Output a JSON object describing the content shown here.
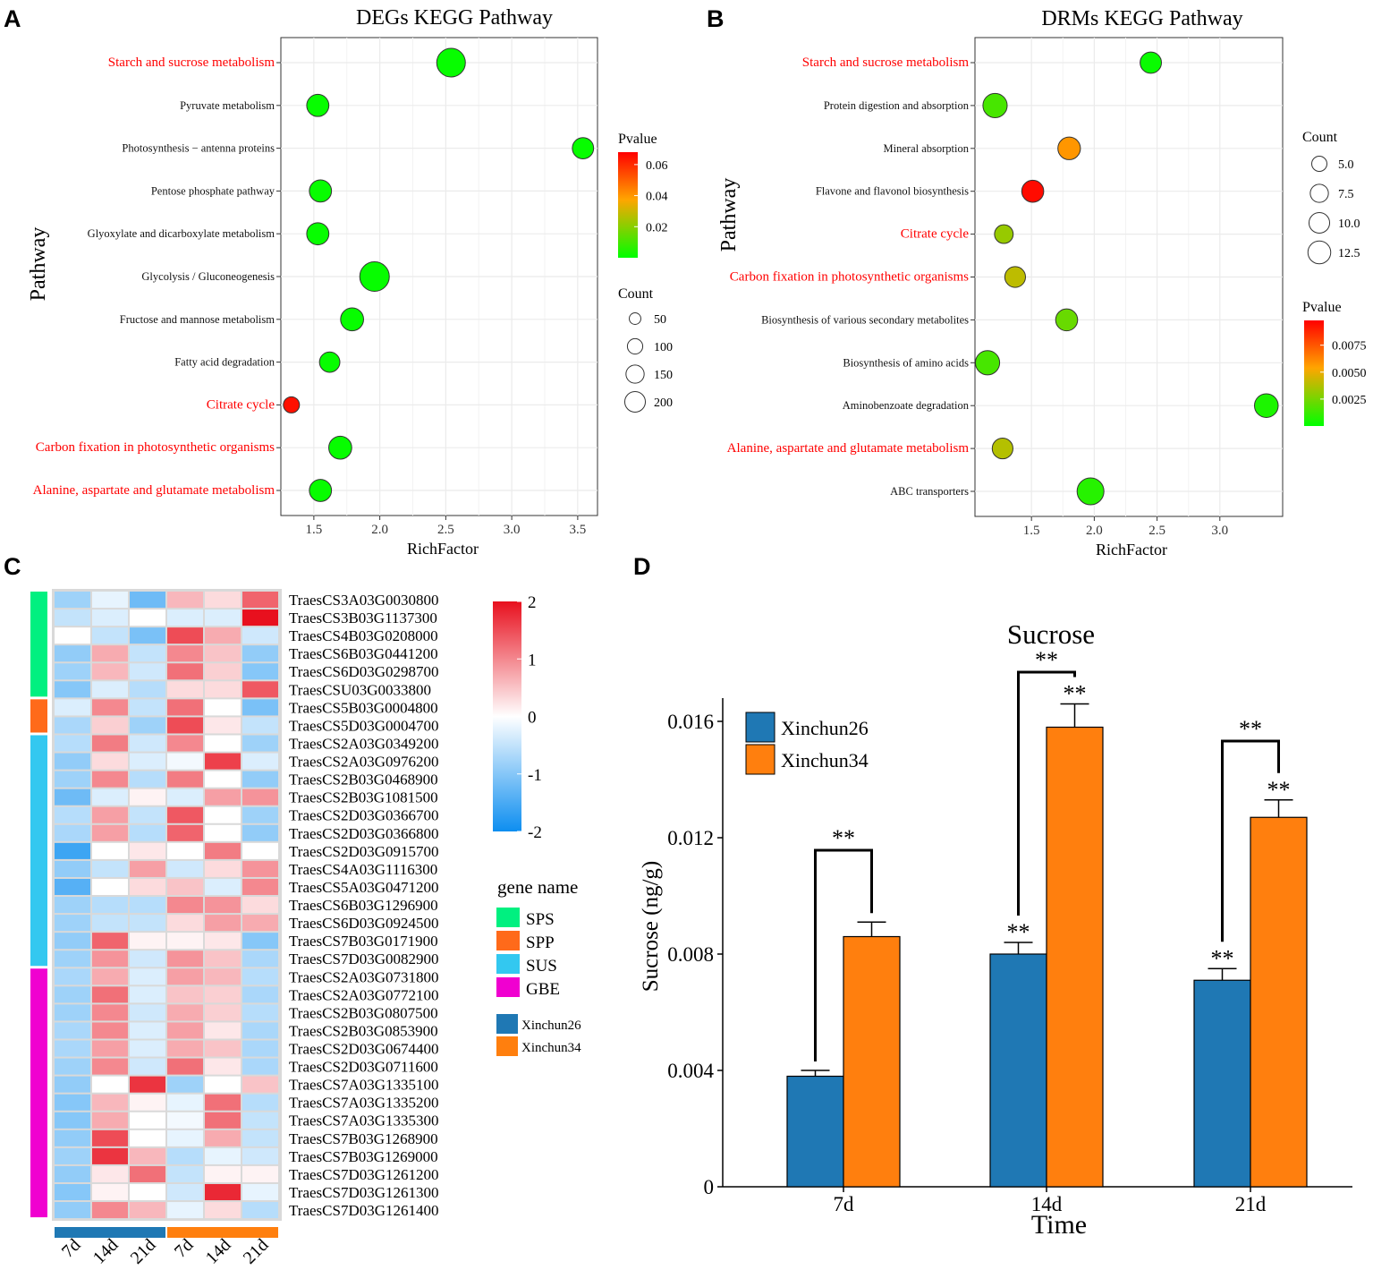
{
  "panels": {
    "A": "A",
    "B": "B",
    "C": "C",
    "D": "D"
  },
  "colors": {
    "red_label": "#ff0000",
    "grid": "#ebebeb",
    "grad_low": "#00ff00",
    "grad_mid": "#ffa500",
    "grad_high": "#ff0000"
  },
  "chart_data": [
    {
      "id": "A",
      "type": "scatter",
      "title": "DEGs KEGG Pathway",
      "xlabel": "RichFactor",
      "ylabel": "Pathway",
      "xlim": [
        1.25,
        3.65
      ],
      "xticks": [
        1.5,
        2.0,
        2.5,
        3.0,
        3.5
      ],
      "xtick_labels": [
        "1.5",
        "2.0",
        "2.5",
        "3.0",
        "3.5"
      ],
      "pathways": [
        {
          "name": "Starch and sucrose metabolism",
          "rich": 2.54,
          "count": 200,
          "pvalue": 0.001,
          "highlight": true
        },
        {
          "name": "Pyruvate metabolism",
          "rich": 1.53,
          "count": 110,
          "pvalue": 0.001,
          "highlight": false
        },
        {
          "name": "Photosynthesis − antenna proteins",
          "rich": 3.54,
          "count": 100,
          "pvalue": 0.001,
          "highlight": false
        },
        {
          "name": "Pentose phosphate pathway",
          "rich": 1.55,
          "count": 110,
          "pvalue": 0.001,
          "highlight": false
        },
        {
          "name": "Glyoxylate and dicarboxylate metabolism",
          "rich": 1.53,
          "count": 110,
          "pvalue": 0.001,
          "highlight": false
        },
        {
          "name": "Glycolysis / Gluconeogenesis",
          "rich": 1.96,
          "count": 215,
          "pvalue": 0.001,
          "highlight": false
        },
        {
          "name": "Fructose and mannose metabolism",
          "rich": 1.79,
          "count": 120,
          "pvalue": 0.001,
          "highlight": false
        },
        {
          "name": "Fatty acid degradation",
          "rich": 1.62,
          "count": 90,
          "pvalue": 0.001,
          "highlight": false
        },
        {
          "name": "Citrate cycle",
          "rich": 1.33,
          "count": 50,
          "pvalue": 0.065,
          "highlight": true
        },
        {
          "name": "Carbon fixation in photosynthetic organisms",
          "rich": 1.7,
          "count": 120,
          "pvalue": 0.001,
          "highlight": true
        },
        {
          "name": "Alanine, aspartate and glutamate metabolism",
          "rich": 1.55,
          "count": 110,
          "pvalue": 0.001,
          "highlight": true
        }
      ],
      "pvalue_legend": {
        "title": "Pvalue",
        "range": [
          0.0,
          0.068
        ],
        "ticks": [
          0.06,
          0.04,
          0.02
        ],
        "tick_labels": [
          "0.06",
          "0.04",
          "0.02"
        ]
      },
      "count_legend": {
        "title": "Count",
        "values": [
          50,
          100,
          150,
          200
        ],
        "labels": [
          "50",
          "100",
          "150",
          "200"
        ]
      }
    },
    {
      "id": "B",
      "type": "scatter",
      "title": "DRMs KEGG Pathway",
      "xlabel": "RichFactor",
      "ylabel": "Pathway",
      "xlim": [
        1.05,
        3.5
      ],
      "xticks": [
        1.5,
        2.0,
        2.5,
        3.0
      ],
      "xtick_labels": [
        "1.5",
        "2.0",
        "2.5",
        "3.0"
      ],
      "pathways": [
        {
          "name": "Starch and sucrose metabolism",
          "rich": 2.45,
          "count": 7.5,
          "pvalue": 0.0002,
          "highlight": true
        },
        {
          "name": "Protein digestion and absorption",
          "rich": 1.21,
          "count": 10.0,
          "pvalue": 0.0015,
          "highlight": false
        },
        {
          "name": "Mineral absorption",
          "rich": 1.8,
          "count": 8.5,
          "pvalue": 0.0058,
          "highlight": false
        },
        {
          "name": "Flavone and flavonol biosynthesis",
          "rich": 1.51,
          "count": 8.0,
          "pvalue": 0.0095,
          "highlight": false
        },
        {
          "name": "Citrate cycle",
          "rich": 1.28,
          "count": 5.5,
          "pvalue": 0.0032,
          "highlight": true
        },
        {
          "name": "Carbon fixation in photosynthetic organisms",
          "rich": 1.37,
          "count": 7.0,
          "pvalue": 0.004,
          "highlight": true
        },
        {
          "name": "Biosynthesis of various secondary metabolites",
          "rich": 1.78,
          "count": 8.0,
          "pvalue": 0.0022,
          "highlight": false
        },
        {
          "name": "Biosynthesis of amino acids",
          "rich": 1.15,
          "count": 10.0,
          "pvalue": 0.0015,
          "highlight": false
        },
        {
          "name": "Aminobenzoate degradation",
          "rich": 3.37,
          "count": 9.5,
          "pvalue": 0.0006,
          "highlight": false
        },
        {
          "name": "Alanine, aspartate and glutamate metabolism",
          "rich": 1.27,
          "count": 7.0,
          "pvalue": 0.0038,
          "highlight": true
        },
        {
          "name": "ABC transporters",
          "rich": 1.97,
          "count": 12.5,
          "pvalue": 0.0008,
          "highlight": false
        }
      ],
      "pvalue_legend": {
        "title": "Pvalue",
        "range": [
          0.0,
          0.0098
        ],
        "ticks": [
          0.0075,
          0.005,
          0.0025
        ],
        "tick_labels": [
          "0.0075",
          "0.0050",
          "0.0025"
        ]
      },
      "count_legend": {
        "title": "Count",
        "values": [
          5.0,
          7.5,
          10.0,
          12.5
        ],
        "labels": [
          "5.0",
          "7.5",
          "10.0",
          "12.5"
        ]
      }
    },
    {
      "id": "C",
      "type": "heatmap",
      "columns": [
        "7d",
        "14d",
        "21d",
        "7d",
        "14d",
        "21d"
      ],
      "column_groups": [
        {
          "name": "Xinchun26",
          "color": "#1f78b4",
          "span": 3
        },
        {
          "name": "Xinchun34",
          "color": "#ff7f0e",
          "span": 3
        }
      ],
      "genes": [
        {
          "id": "TraesCS3A03G0030800",
          "group": "SPS",
          "values": [
            -0.8,
            -0.2,
            -1.2,
            0.6,
            0.3,
            1.3
          ]
        },
        {
          "id": "TraesCS3B03G1137300",
          "group": "SPS",
          "values": [
            -0.5,
            -0.3,
            0.0,
            -0.3,
            -0.3,
            2.0
          ]
        },
        {
          "id": "TraesCS4B03G0208000",
          "group": "SPS",
          "values": [
            0.0,
            -0.5,
            -1.1,
            1.5,
            0.7,
            -0.4
          ]
        },
        {
          "id": "TraesCS6B03G0441200",
          "group": "SPS",
          "values": [
            -0.9,
            0.7,
            -0.5,
            1.0,
            0.5,
            -0.9
          ]
        },
        {
          "id": "TraesCS6D03G0298700",
          "group": "SPS",
          "values": [
            -0.8,
            0.6,
            -0.4,
            1.2,
            0.4,
            -1.0
          ]
        },
        {
          "id": "TraesCSU03G0033800",
          "group": "SPS",
          "values": [
            -1.0,
            -0.3,
            -0.6,
            0.3,
            0.3,
            1.4
          ]
        },
        {
          "id": "TraesCS5B03G0004800",
          "group": "SPP",
          "values": [
            -0.3,
            1.0,
            -0.5,
            1.2,
            0.0,
            -1.1
          ]
        },
        {
          "id": "TraesCS5D03G0004700",
          "group": "SPP",
          "values": [
            -0.7,
            0.4,
            -0.8,
            1.5,
            0.2,
            -0.5
          ]
        },
        {
          "id": "TraesCS2A03G0349200",
          "group": "SUS",
          "values": [
            -0.6,
            1.1,
            -0.4,
            1.0,
            0.0,
            -0.8
          ]
        },
        {
          "id": "TraesCS2A03G0976200",
          "group": "SUS",
          "values": [
            -0.9,
            0.3,
            -0.3,
            -0.1,
            1.6,
            -0.3
          ]
        },
        {
          "id": "TraesCS2B03G0468900",
          "group": "SUS",
          "values": [
            -0.8,
            1.0,
            -0.6,
            1.1,
            0.0,
            -0.9
          ]
        },
        {
          "id": "TraesCS2B03G1081500",
          "group": "SUS",
          "values": [
            -1.2,
            -0.3,
            0.1,
            -0.3,
            0.8,
            0.9
          ]
        },
        {
          "id": "TraesCS2D03G0366700",
          "group": "SUS",
          "values": [
            -0.6,
            0.8,
            -0.5,
            1.4,
            0.0,
            -0.8
          ]
        },
        {
          "id": "TraesCS2D03G0366800",
          "group": "SUS",
          "values": [
            -0.7,
            0.8,
            -0.6,
            1.3,
            0.0,
            -0.9
          ]
        },
        {
          "id": "TraesCS2D03G0915700",
          "group": "SUS",
          "values": [
            -1.6,
            0.0,
            0.2,
            0.0,
            1.1,
            0.0
          ]
        },
        {
          "id": "TraesCS4A03G1116300",
          "group": "SUS",
          "values": [
            -0.9,
            -0.5,
            0.8,
            -0.4,
            0.3,
            0.9
          ]
        },
        {
          "id": "TraesCS5A03G0471200",
          "group": "SUS",
          "values": [
            -1.4,
            0.0,
            0.3,
            0.5,
            -0.3,
            1.0
          ]
        },
        {
          "id": "TraesCS6B03G1296900",
          "group": "SUS",
          "values": [
            -0.8,
            -0.6,
            -0.6,
            1.0,
            0.9,
            0.3
          ]
        },
        {
          "id": "TraesCS6D03G0924500",
          "group": "SUS",
          "values": [
            -0.8,
            -0.5,
            -0.5,
            0.3,
            0.8,
            0.7
          ]
        },
        {
          "id": "TraesCS7B03G0171900",
          "group": "SUS",
          "values": [
            -0.9,
            1.3,
            0.1,
            0.1,
            0.2,
            -1.0
          ]
        },
        {
          "id": "TraesCS7D03G0082900",
          "group": "SUS",
          "values": [
            -0.8,
            0.9,
            -0.4,
            0.9,
            0.5,
            -0.7
          ]
        },
        {
          "id": "TraesCS2A03G0731800",
          "group": "GBE",
          "values": [
            -0.7,
            0.7,
            -0.3,
            0.8,
            0.6,
            -0.6
          ]
        },
        {
          "id": "TraesCS2A03G0772100",
          "group": "GBE",
          "values": [
            -0.8,
            1.2,
            -0.3,
            0.5,
            0.4,
            -0.7
          ]
        },
        {
          "id": "TraesCS2B03G0807500",
          "group": "GBE",
          "values": [
            -0.8,
            1.0,
            -0.4,
            0.7,
            0.4,
            -0.6
          ]
        },
        {
          "id": "TraesCS2B03G0853900",
          "group": "GBE",
          "values": [
            -0.7,
            1.0,
            -0.3,
            0.8,
            0.2,
            -0.7
          ]
        },
        {
          "id": "TraesCS2D03G0674400",
          "group": "GBE",
          "values": [
            -0.7,
            0.8,
            -0.3,
            0.7,
            0.5,
            -0.7
          ]
        },
        {
          "id": "TraesCS2D03G0711600",
          "group": "GBE",
          "values": [
            -0.8,
            1.0,
            -0.4,
            1.2,
            0.2,
            -0.7
          ]
        },
        {
          "id": "TraesCS7A03G1335100",
          "group": "GBE",
          "values": [
            -0.9,
            0.0,
            1.7,
            -0.8,
            0.0,
            0.5
          ]
        },
        {
          "id": "TraesCS7A03G1335200",
          "group": "GBE",
          "values": [
            -1.0,
            0.6,
            0.1,
            -0.2,
            1.2,
            -0.6
          ]
        },
        {
          "id": "TraesCS7A03G1335300",
          "group": "GBE",
          "values": [
            -1.0,
            0.7,
            0.0,
            -0.1,
            1.2,
            -0.5
          ]
        },
        {
          "id": "TraesCS7B03G1268900",
          "group": "GBE",
          "values": [
            -0.9,
            1.5,
            0.0,
            -0.2,
            0.7,
            -0.5
          ]
        },
        {
          "id": "TraesCS7B03G1269000",
          "group": "GBE",
          "values": [
            -0.8,
            1.7,
            0.6,
            -0.6,
            -0.2,
            -0.4
          ]
        },
        {
          "id": "TraesCS7D03G1261200",
          "group": "GBE",
          "values": [
            -0.9,
            0.2,
            1.2,
            -0.5,
            0.1,
            0.1
          ]
        },
        {
          "id": "TraesCS7D03G1261300",
          "group": "GBE",
          "values": [
            -1.0,
            0.1,
            0.0,
            -0.4,
            1.8,
            -0.2
          ]
        },
        {
          "id": "TraesCS7D03G1261400",
          "group": "GBE",
          "values": [
            -0.9,
            1.0,
            0.6,
            -0.2,
            0.3,
            -0.6
          ]
        }
      ],
      "row_groups": [
        {
          "name": "SPS",
          "color": "#00f080"
        },
        {
          "name": "SPP",
          "color": "#ff6a1a"
        },
        {
          "name": "SUS",
          "color": "#33c8f0"
        },
        {
          "name": "GBE",
          "color": "#f000d0"
        }
      ],
      "scale": {
        "min": -2,
        "max": 2,
        "ticks": [
          2,
          1,
          0,
          -1,
          -2
        ],
        "tick_labels": [
          "2",
          "1",
          "0",
          "-1",
          "-2"
        ]
      },
      "legend_title": "gene name",
      "sample_legend": [
        "Xinchun26",
        "Xinchun34"
      ]
    },
    {
      "id": "D",
      "type": "bar",
      "title": "Sucrose",
      "xlabel": "Time",
      "ylabel": "Sucrose (ng/g)",
      "categories": [
        "7d",
        "14d",
        "21d"
      ],
      "ylim": [
        0,
        0.0168
      ],
      "yticks": [
        0,
        0.004,
        0.008,
        0.012,
        0.016
      ],
      "ytick_labels": [
        "0",
        "0.004",
        "0.008",
        "0.012",
        "0.016"
      ],
      "series": [
        {
          "name": "Xinchun26",
          "color": "#1f78b4",
          "values": [
            0.0038,
            0.008,
            0.0071
          ],
          "errors": [
            0.0002,
            0.0004,
            0.0004
          ],
          "stars": [
            "",
            "**",
            "**"
          ]
        },
        {
          "name": "Xinchun34",
          "color": "#ff7f0e",
          "values": [
            0.0086,
            0.0158,
            0.0127
          ],
          "errors": [
            0.0005,
            0.0008,
            0.0006
          ],
          "stars": [
            "",
            "**",
            "**"
          ]
        }
      ],
      "brackets": [
        "**",
        "**",
        "**"
      ]
    }
  ]
}
